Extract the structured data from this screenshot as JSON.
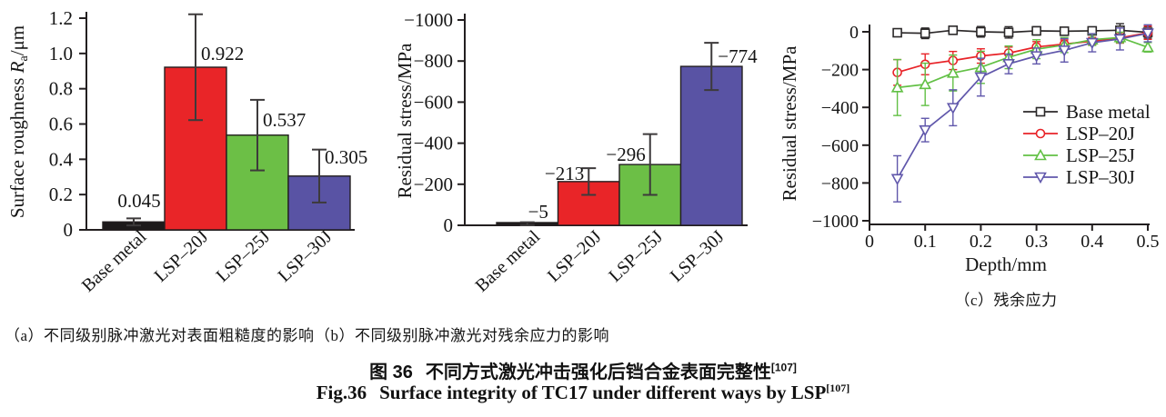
{
  "chart_data": [
    {
      "id": "a",
      "type": "bar",
      "title": "",
      "ylabel_parts": {
        "prefix": "Surface roughness ",
        "symbol": "R",
        "subscript": "a",
        "suffix": "/μm"
      },
      "categories": [
        "Base metal",
        "LSP–20J",
        "LSP–25J",
        "LSP–30J"
      ],
      "values": [
        0.045,
        0.922,
        0.537,
        0.305
      ],
      "errors": [
        0.02,
        0.3,
        0.2,
        0.15
      ],
      "value_labels": [
        "0.045",
        "0.922",
        "0.537",
        "0.305"
      ],
      "bar_colors": [
        "#1d1a1b",
        "#e92528",
        "#6cbf46",
        "#5953a4"
      ],
      "ylim": [
        0,
        1.2
      ],
      "yticks": [
        0,
        0.2,
        0.4,
        0.6,
        0.8,
        1.0,
        1.2
      ],
      "ytick_labels": [
        "0",
        "0.2",
        "0.4",
        "0.6",
        "0.8",
        "1.0",
        "1.2"
      ],
      "grid": false,
      "caption": "（a）不同级别脉冲激光对表面粗糙度的影响"
    },
    {
      "id": "b",
      "type": "bar",
      "title": "",
      "ylabel": "Residual stress/MPa",
      "categories": [
        "Base metal",
        "LSP–20J",
        "LSP–25J",
        "LSP–30J"
      ],
      "values": [
        -5,
        -213,
        -296,
        -774
      ],
      "errors": [
        10,
        65,
        148,
        115
      ],
      "value_labels": [
        "−5",
        "−213",
        "−296",
        "−774"
      ],
      "bar_colors": [
        "#1d1a1b",
        "#e92528",
        "#6cbf46",
        "#5953a4"
      ],
      "ylim": [
        0,
        -1000
      ],
      "yticks": [
        0,
        -200,
        -400,
        -600,
        -800,
        -1000
      ],
      "ytick_labels": [
        "0",
        "−200",
        "−400",
        "−600",
        "−800",
        "−1000"
      ],
      "grid": false,
      "caption": "（b）不同级别脉冲激光对残余应力的影响"
    },
    {
      "id": "c",
      "type": "line",
      "title": "",
      "xlabel": "Depth/mm",
      "ylabel": "Residual stress/MPa",
      "x": [
        0.05,
        0.1,
        0.15,
        0.2,
        0.25,
        0.3,
        0.35,
        0.4,
        0.45,
        0.5
      ],
      "series": [
        {
          "name": "Base metal",
          "color": "#2b2829",
          "marker": "square",
          "values": [
            -5,
            -8,
            8,
            0,
            -3,
            5,
            3,
            5,
            8,
            -3
          ],
          "errors": [
            20,
            28,
            15,
            28,
            30,
            22,
            18,
            15,
            35,
            30
          ]
        },
        {
          "name": "LSP–20J",
          "color": "#e82328",
          "marker": "circle",
          "values": [
            -215,
            -172,
            -152,
            -128,
            -113,
            -80,
            -65,
            -50,
            -32,
            -5
          ],
          "errors": [
            68,
            55,
            48,
            38,
            32,
            28,
            22,
            20,
            28,
            35
          ]
        },
        {
          "name": "LSP–25J",
          "color": "#62c045",
          "marker": "triangle-up",
          "values": [
            -295,
            -278,
            -218,
            -188,
            -135,
            -92,
            -70,
            -42,
            -30,
            -82
          ],
          "errors": [
            148,
            112,
            95,
            85,
            60,
            50,
            40,
            30,
            28,
            25
          ]
        },
        {
          "name": "LSP–30J",
          "color": "#6057ab",
          "marker": "triangle-down",
          "values": [
            -778,
            -520,
            -402,
            -240,
            -170,
            -128,
            -98,
            -58,
            -38,
            -8
          ],
          "errors": [
            122,
            62,
            95,
            100,
            52,
            42,
            62,
            48,
            58,
            45
          ]
        }
      ],
      "xlim": [
        0,
        0.5
      ],
      "ylim": [
        0,
        -1000
      ],
      "xticks": [
        0,
        0.1,
        0.2,
        0.3,
        0.4,
        0.5
      ],
      "xtick_labels": [
        "0",
        "0.1",
        "0.2",
        "0.3",
        "0.4",
        "0.5"
      ],
      "yticks": [
        0,
        -200,
        -400,
        -600,
        -800,
        -1000
      ],
      "ytick_labels": [
        "0",
        "−200",
        "−400",
        "−600",
        "−800",
        "−1000"
      ],
      "grid": false,
      "legend_position": "right-center",
      "caption": "（c）残余应力"
    }
  ],
  "figure_caption": {
    "zh_label": "图 36",
    "zh_text": "不同方式激光冲击强化后铛合金表面完整性",
    "zh_sup": "[107]",
    "en_label": "Fig.36",
    "en_text": "Surface integrity of TC17 under different ways by LSP",
    "en_sup": "[107]"
  },
  "colors": {
    "bar_red": "#e92528",
    "bar_green": "#6cbf46",
    "bar_purple": "#5953a4",
    "bar_black": "#1d1a1b",
    "axis": "#231f20",
    "error_bar": "#3d3a3b"
  }
}
